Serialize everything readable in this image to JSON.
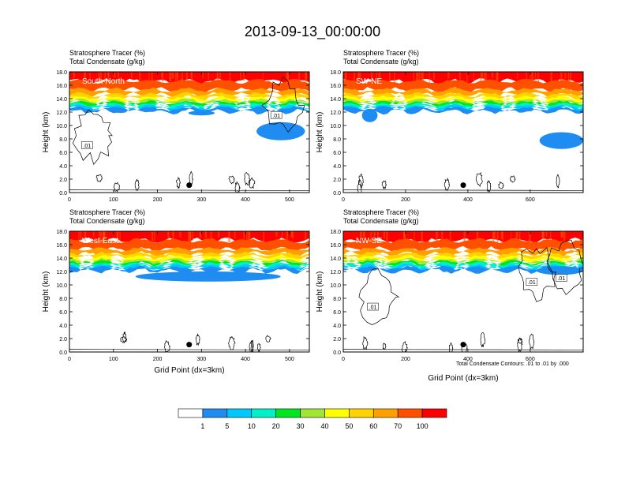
{
  "title": "2013-09-13_00:00:00",
  "footnote": "Total Condensate Contours: .01 to .01 by .000",
  "chart_data": [
    {
      "type": "heatmap",
      "panel_tag": "South-North",
      "labels": [
        "Stratosphere Tracer   (%)",
        "Total Condensate   (g/kg)"
      ],
      "ylabel": "Height (km)",
      "xlabel": "",
      "xlim": [
        0,
        545
      ],
      "ylim": [
        0,
        18
      ],
      "xticks": [
        0,
        100,
        200,
        300,
        400,
        500
      ],
      "yticks": [
        0,
        2,
        4,
        6,
        8,
        10,
        12,
        14,
        16,
        18
      ],
      "tropopause_km": 14.0,
      "marker": {
        "x": 272,
        "y": 1.1
      },
      "contour_labels": [
        {
          "text": ".01",
          "x": 40,
          "y": 7.0
        },
        {
          "text": ".01",
          "x": 470,
          "y": 11.5
        }
      ],
      "blue_patches": [
        [
          425,
          535,
          7.8,
          10.5
        ],
        [
          270,
          330,
          11.5,
          12.2
        ]
      ]
    },
    {
      "type": "heatmap",
      "panel_tag": "SW-NE",
      "labels": [
        "Stratosphere Tracer   (%)",
        "Total Condensate   (g/kg)"
      ],
      "ylabel": "Height (km)",
      "xlabel": "",
      "xlim": [
        0,
        770
      ],
      "ylim": [
        0,
        18
      ],
      "xticks": [
        0,
        200,
        400,
        600
      ],
      "yticks": [
        0,
        2,
        4,
        6,
        8,
        10,
        12,
        14,
        16,
        18
      ],
      "tropopause_km": 14.0,
      "marker": {
        "x": 385,
        "y": 1.1
      },
      "contour_labels": [],
      "blue_patches": [
        [
          630,
          770,
          6.5,
          9.0
        ],
        [
          60,
          110,
          10.5,
          12.5
        ]
      ]
    },
    {
      "type": "heatmap",
      "panel_tag": "West-East",
      "labels": [
        "Stratosphere Tracer   (%)",
        "Total Condensate   (g/kg)"
      ],
      "ylabel": "Height (km)",
      "xlabel": "Grid Point (dx=3km)",
      "xlim": [
        0,
        545
      ],
      "ylim": [
        0,
        18
      ],
      "xticks": [
        0,
        100,
        200,
        300,
        400,
        500
      ],
      "yticks": [
        0,
        2,
        4,
        6,
        8,
        10,
        12,
        14,
        16,
        18
      ],
      "tropopause_km": 14.0,
      "marker": {
        "x": 272,
        "y": 1.1
      },
      "contour_labels": [],
      "blue_patches": [
        [
          150,
          480,
          10.5,
          12.0
        ]
      ]
    },
    {
      "type": "heatmap",
      "panel_tag": "NW-SE",
      "labels": [
        "Stratosphere Tracer   (%)",
        "Total Condensate   (g/kg)"
      ],
      "ylabel": "Height (km)",
      "xlabel": "Grid Point (dx=3km)",
      "xlim": [
        0,
        770
      ],
      "ylim": [
        0,
        18
      ],
      "xticks": [
        0,
        200,
        400,
        600
      ],
      "yticks": [
        0,
        2,
        4,
        6,
        8,
        10,
        12,
        14,
        16,
        18
      ],
      "tropopause_km": 14.0,
      "marker": {
        "x": 385,
        "y": 1.1
      },
      "contour_labels": [
        {
          "text": ".01",
          "x": 95,
          "y": 6.7
        },
        {
          "text": ".01",
          "x": 605,
          "y": 10.4
        },
        {
          "text": ".01",
          "x": 700,
          "y": 11.0
        }
      ],
      "blue_patches": [
        [
          620,
          770,
          11.5,
          12.8
        ]
      ]
    }
  ],
  "colorbar": {
    "colors": [
      "#ffffff",
      "#1e8cf0",
      "#00c8ff",
      "#00f0c8",
      "#00e61e",
      "#a0e632",
      "#ffff00",
      "#ffd200",
      "#ffa000",
      "#ff5000",
      "#ff0000"
    ],
    "labels": [
      "1",
      "5",
      "10",
      "20",
      "30",
      "40",
      "50",
      "60",
      "70",
      "100"
    ]
  }
}
